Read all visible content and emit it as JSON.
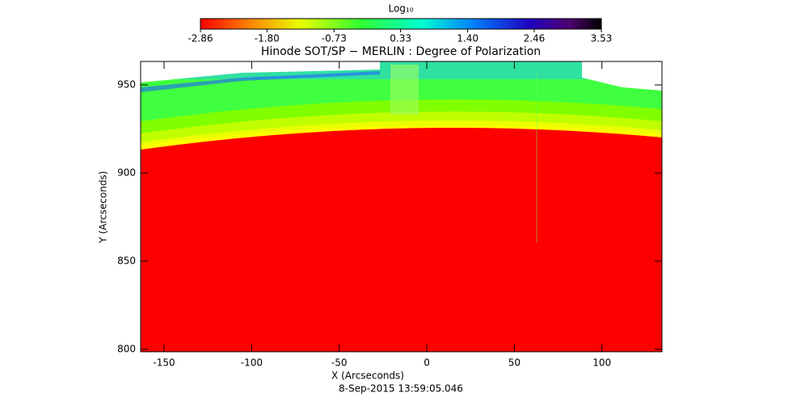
{
  "chart_data": {
    "type": "image",
    "title": "Hinode SOT/SP − MERLIN : Degree of Polarization",
    "colorbar_title": "Log₁₀",
    "colorbar_ticks": [
      -2.86,
      {
        "value": -1.8,
        "label": "-1.80"
      },
      -0.73,
      0.33,
      {
        "value": 1.4,
        "label": "1.40"
      },
      2.46,
      3.53
    ],
    "colorbar_lim": [
      -2.86,
      3.53
    ],
    "x_label": "X (Arcseconds)",
    "y_label": "Y (Arcseconds)",
    "footnote": "8-Sep-2015 13:59:05.046",
    "xlim": [
      -163.4,
      134.3
    ],
    "xticks": [
      -150,
      -100,
      -50,
      0,
      50,
      100
    ],
    "ylim": [
      798.6,
      963.3
    ],
    "yticks": [
      800,
      850,
      900,
      950
    ]
  }
}
